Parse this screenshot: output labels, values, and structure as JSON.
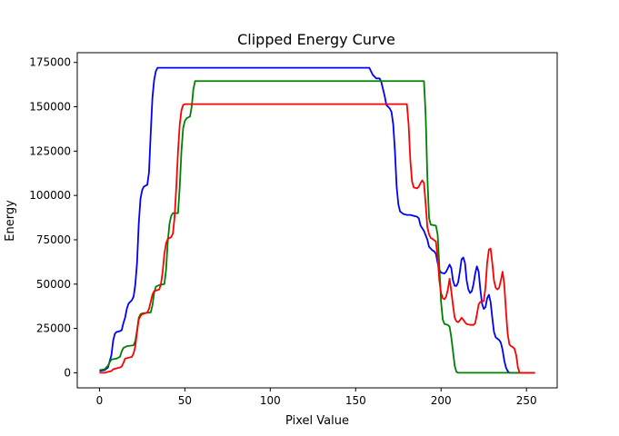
{
  "chart_data": {
    "type": "line",
    "title": "Clipped Energy Curve",
    "xlabel": "Pixel Value",
    "ylabel": "Energy",
    "xlim": [
      -13,
      268
    ],
    "ylim": [
      -8500,
      180500
    ],
    "xticks": [
      0,
      50,
      100,
      150,
      200,
      250
    ],
    "yticks": [
      0,
      25000,
      50000,
      75000,
      100000,
      125000,
      150000,
      175000
    ],
    "grid": false,
    "legend": "none",
    "series": [
      {
        "color": "#0000ff",
        "points": [
          [
            0,
            1000
          ],
          [
            3,
            1500
          ],
          [
            5,
            3000
          ],
          [
            7,
            10000
          ],
          [
            8,
            18000
          ],
          [
            9,
            22000
          ],
          [
            10,
            23000
          ],
          [
            12,
            23500
          ],
          [
            13,
            24000
          ],
          [
            14,
            28000
          ],
          [
            15,
            31000
          ],
          [
            16,
            36000
          ],
          [
            17,
            39000
          ],
          [
            19,
            41000
          ],
          [
            20,
            43000
          ],
          [
            21,
            50000
          ],
          [
            22,
            62000
          ],
          [
            23,
            84000
          ],
          [
            24,
            98000
          ],
          [
            25,
            103000
          ],
          [
            26,
            105000
          ],
          [
            28,
            106000
          ],
          [
            29,
            113000
          ],
          [
            30,
            135000
          ],
          [
            31,
            155000
          ],
          [
            32,
            165000
          ],
          [
            33,
            170000
          ],
          [
            34,
            172000
          ],
          [
            50,
            172000
          ],
          [
            100,
            172000
          ],
          [
            150,
            172000
          ],
          [
            158,
            172000
          ],
          [
            160,
            168000
          ],
          [
            162,
            166000
          ],
          [
            164,
            166000
          ],
          [
            165,
            164000
          ],
          [
            166,
            160000
          ],
          [
            167,
            156000
          ],
          [
            168,
            151000
          ],
          [
            170,
            149000
          ],
          [
            171,
            147000
          ],
          [
            172,
            140000
          ],
          [
            173,
            125000
          ],
          [
            174,
            105000
          ],
          [
            175,
            95000
          ],
          [
            176,
            91000
          ],
          [
            178,
            89500
          ],
          [
            180,
            89000
          ],
          [
            182,
            89000
          ],
          [
            184,
            88500
          ],
          [
            186,
            88000
          ],
          [
            187,
            87000
          ],
          [
            188,
            83000
          ],
          [
            190,
            80000
          ],
          [
            192,
            75000
          ],
          [
            193,
            71000
          ],
          [
            195,
            69000
          ],
          [
            196,
            68500
          ],
          [
            197,
            67000
          ],
          [
            198,
            62000
          ],
          [
            199,
            58000
          ],
          [
            200,
            56500
          ],
          [
            202,
            56000
          ],
          [
            203,
            57000
          ],
          [
            204,
            59000
          ],
          [
            205,
            61000
          ],
          [
            206,
            59000
          ],
          [
            207,
            52000
          ],
          [
            208,
            49000
          ],
          [
            209,
            49000
          ],
          [
            210,
            51000
          ],
          [
            211,
            57000
          ],
          [
            212,
            64000
          ],
          [
            213,
            65000
          ],
          [
            214,
            62000
          ],
          [
            215,
            52000
          ],
          [
            216,
            47000
          ],
          [
            217,
            45000
          ],
          [
            218,
            46000
          ],
          [
            219,
            50000
          ],
          [
            220,
            56000
          ],
          [
            221,
            60000
          ],
          [
            222,
            57000
          ],
          [
            223,
            47000
          ],
          [
            224,
            39000
          ],
          [
            225,
            36000
          ],
          [
            226,
            37000
          ],
          [
            227,
            42000
          ],
          [
            228,
            44000
          ],
          [
            229,
            40000
          ],
          [
            230,
            31000
          ],
          [
            231,
            23000
          ],
          [
            232,
            20000
          ],
          [
            234,
            18500
          ],
          [
            235,
            17000
          ],
          [
            236,
            13000
          ],
          [
            237,
            7000
          ],
          [
            238,
            3000
          ],
          [
            239,
            1000
          ],
          [
            240,
            0
          ],
          [
            245,
            0
          ],
          [
            250,
            0
          ],
          [
            254,
            0
          ],
          [
            255,
            0
          ]
        ]
      },
      {
        "color": "#008000",
        "points": [
          [
            0,
            1500
          ],
          [
            3,
            2000
          ],
          [
            5,
            4000
          ],
          [
            6,
            6000
          ],
          [
            7,
            7500
          ],
          [
            10,
            8000
          ],
          [
            12,
            9000
          ],
          [
            13,
            12000
          ],
          [
            14,
            14000
          ],
          [
            16,
            15000
          ],
          [
            20,
            15500
          ],
          [
            21,
            18000
          ],
          [
            22,
            24000
          ],
          [
            23,
            31000
          ],
          [
            24,
            33000
          ],
          [
            25,
            33500
          ],
          [
            30,
            34000
          ],
          [
            31,
            38000
          ],
          [
            32,
            45000
          ],
          [
            33,
            48500
          ],
          [
            35,
            49500
          ],
          [
            38,
            50000
          ],
          [
            39,
            58000
          ],
          [
            40,
            74000
          ],
          [
            41,
            84000
          ],
          [
            42,
            88500
          ],
          [
            43,
            90000
          ],
          [
            46,
            90000
          ],
          [
            47,
            105000
          ],
          [
            48,
            125000
          ],
          [
            49,
            138000
          ],
          [
            50,
            142000
          ],
          [
            51,
            143500
          ],
          [
            53,
            144500
          ],
          [
            54,
            150000
          ],
          [
            55,
            160000
          ],
          [
            56,
            164500
          ],
          [
            100,
            164500
          ],
          [
            150,
            164500
          ],
          [
            180,
            164500
          ],
          [
            190,
            164500
          ],
          [
            191,
            145000
          ],
          [
            192,
            110000
          ],
          [
            193,
            87000
          ],
          [
            194,
            83500
          ],
          [
            197,
            83000
          ],
          [
            198,
            78000
          ],
          [
            199,
            60000
          ],
          [
            200,
            40000
          ],
          [
            201,
            30000
          ],
          [
            202,
            27500
          ],
          [
            204,
            27000
          ],
          [
            205,
            26000
          ],
          [
            206,
            20000
          ],
          [
            207,
            12000
          ],
          [
            208,
            4000
          ],
          [
            209,
            500
          ],
          [
            210,
            0
          ],
          [
            220,
            0
          ],
          [
            230,
            0
          ],
          [
            240,
            0
          ],
          [
            250,
            0
          ],
          [
            255,
            0
          ]
        ]
      },
      {
        "color": "#ff0000",
        "points": [
          [
            0,
            0
          ],
          [
            3,
            0
          ],
          [
            5,
            500
          ],
          [
            7,
            1000
          ],
          [
            8,
            2000
          ],
          [
            10,
            2500
          ],
          [
            12,
            3000
          ],
          [
            13,
            3500
          ],
          [
            14,
            5500
          ],
          [
            15,
            8000
          ],
          [
            17,
            8500
          ],
          [
            19,
            9000
          ],
          [
            20,
            11000
          ],
          [
            21,
            15000
          ],
          [
            22,
            23000
          ],
          [
            23,
            30000
          ],
          [
            24,
            32000
          ],
          [
            25,
            33000
          ],
          [
            28,
            34000
          ],
          [
            29,
            36000
          ],
          [
            30,
            40000
          ],
          [
            31,
            44000
          ],
          [
            32,
            46000
          ],
          [
            35,
            47000
          ],
          [
            36,
            50000
          ],
          [
            37,
            57000
          ],
          [
            38,
            67000
          ],
          [
            39,
            73000
          ],
          [
            40,
            75500
          ],
          [
            42,
            76500
          ],
          [
            43,
            78500
          ],
          [
            44,
            88000
          ],
          [
            45,
            105000
          ],
          [
            46,
            125000
          ],
          [
            47,
            140000
          ],
          [
            48,
            148000
          ],
          [
            49,
            151000
          ],
          [
            50,
            151500
          ],
          [
            100,
            151500
          ],
          [
            150,
            151500
          ],
          [
            180,
            151500
          ],
          [
            181,
            140000
          ],
          [
            182,
            120000
          ],
          [
            183,
            108000
          ],
          [
            184,
            104500
          ],
          [
            186,
            104000
          ],
          [
            187,
            105000
          ],
          [
            188,
            107000
          ],
          [
            189,
            108500
          ],
          [
            190,
            107000
          ],
          [
            191,
            95000
          ],
          [
            192,
            82000
          ],
          [
            193,
            78000
          ],
          [
            194,
            76000
          ],
          [
            195,
            75500
          ],
          [
            197,
            74000
          ],
          [
            198,
            65000
          ],
          [
            199,
            52000
          ],
          [
            200,
            45000
          ],
          [
            201,
            42000
          ],
          [
            202,
            41500
          ],
          [
            203,
            43000
          ],
          [
            204,
            47000
          ],
          [
            205,
            53000
          ],
          [
            206,
            46000
          ],
          [
            207,
            38000
          ],
          [
            208,
            31000
          ],
          [
            209,
            29000
          ],
          [
            210,
            28500
          ],
          [
            211,
            29500
          ],
          [
            212,
            31000
          ],
          [
            213,
            30000
          ],
          [
            214,
            28500
          ],
          [
            215,
            27500
          ],
          [
            217,
            27000
          ],
          [
            219,
            27000
          ],
          [
            220,
            28000
          ],
          [
            221,
            33000
          ],
          [
            222,
            38500
          ],
          [
            223,
            40000
          ],
          [
            225,
            40500
          ],
          [
            226,
            48000
          ],
          [
            227,
            62000
          ],
          [
            228,
            69500
          ],
          [
            229,
            70000
          ],
          [
            230,
            62000
          ],
          [
            231,
            52000
          ],
          [
            232,
            48000
          ],
          [
            233,
            47000
          ],
          [
            234,
            48000
          ],
          [
            235,
            52000
          ],
          [
            236,
            57000
          ],
          [
            237,
            50000
          ],
          [
            238,
            35000
          ],
          [
            239,
            22000
          ],
          [
            240,
            16000
          ],
          [
            241,
            15000
          ],
          [
            242,
            14500
          ],
          [
            243,
            13500
          ],
          [
            244,
            10000
          ],
          [
            245,
            3000
          ],
          [
            246,
            0
          ],
          [
            250,
            0
          ],
          [
            255,
            0
          ]
        ]
      }
    ]
  }
}
